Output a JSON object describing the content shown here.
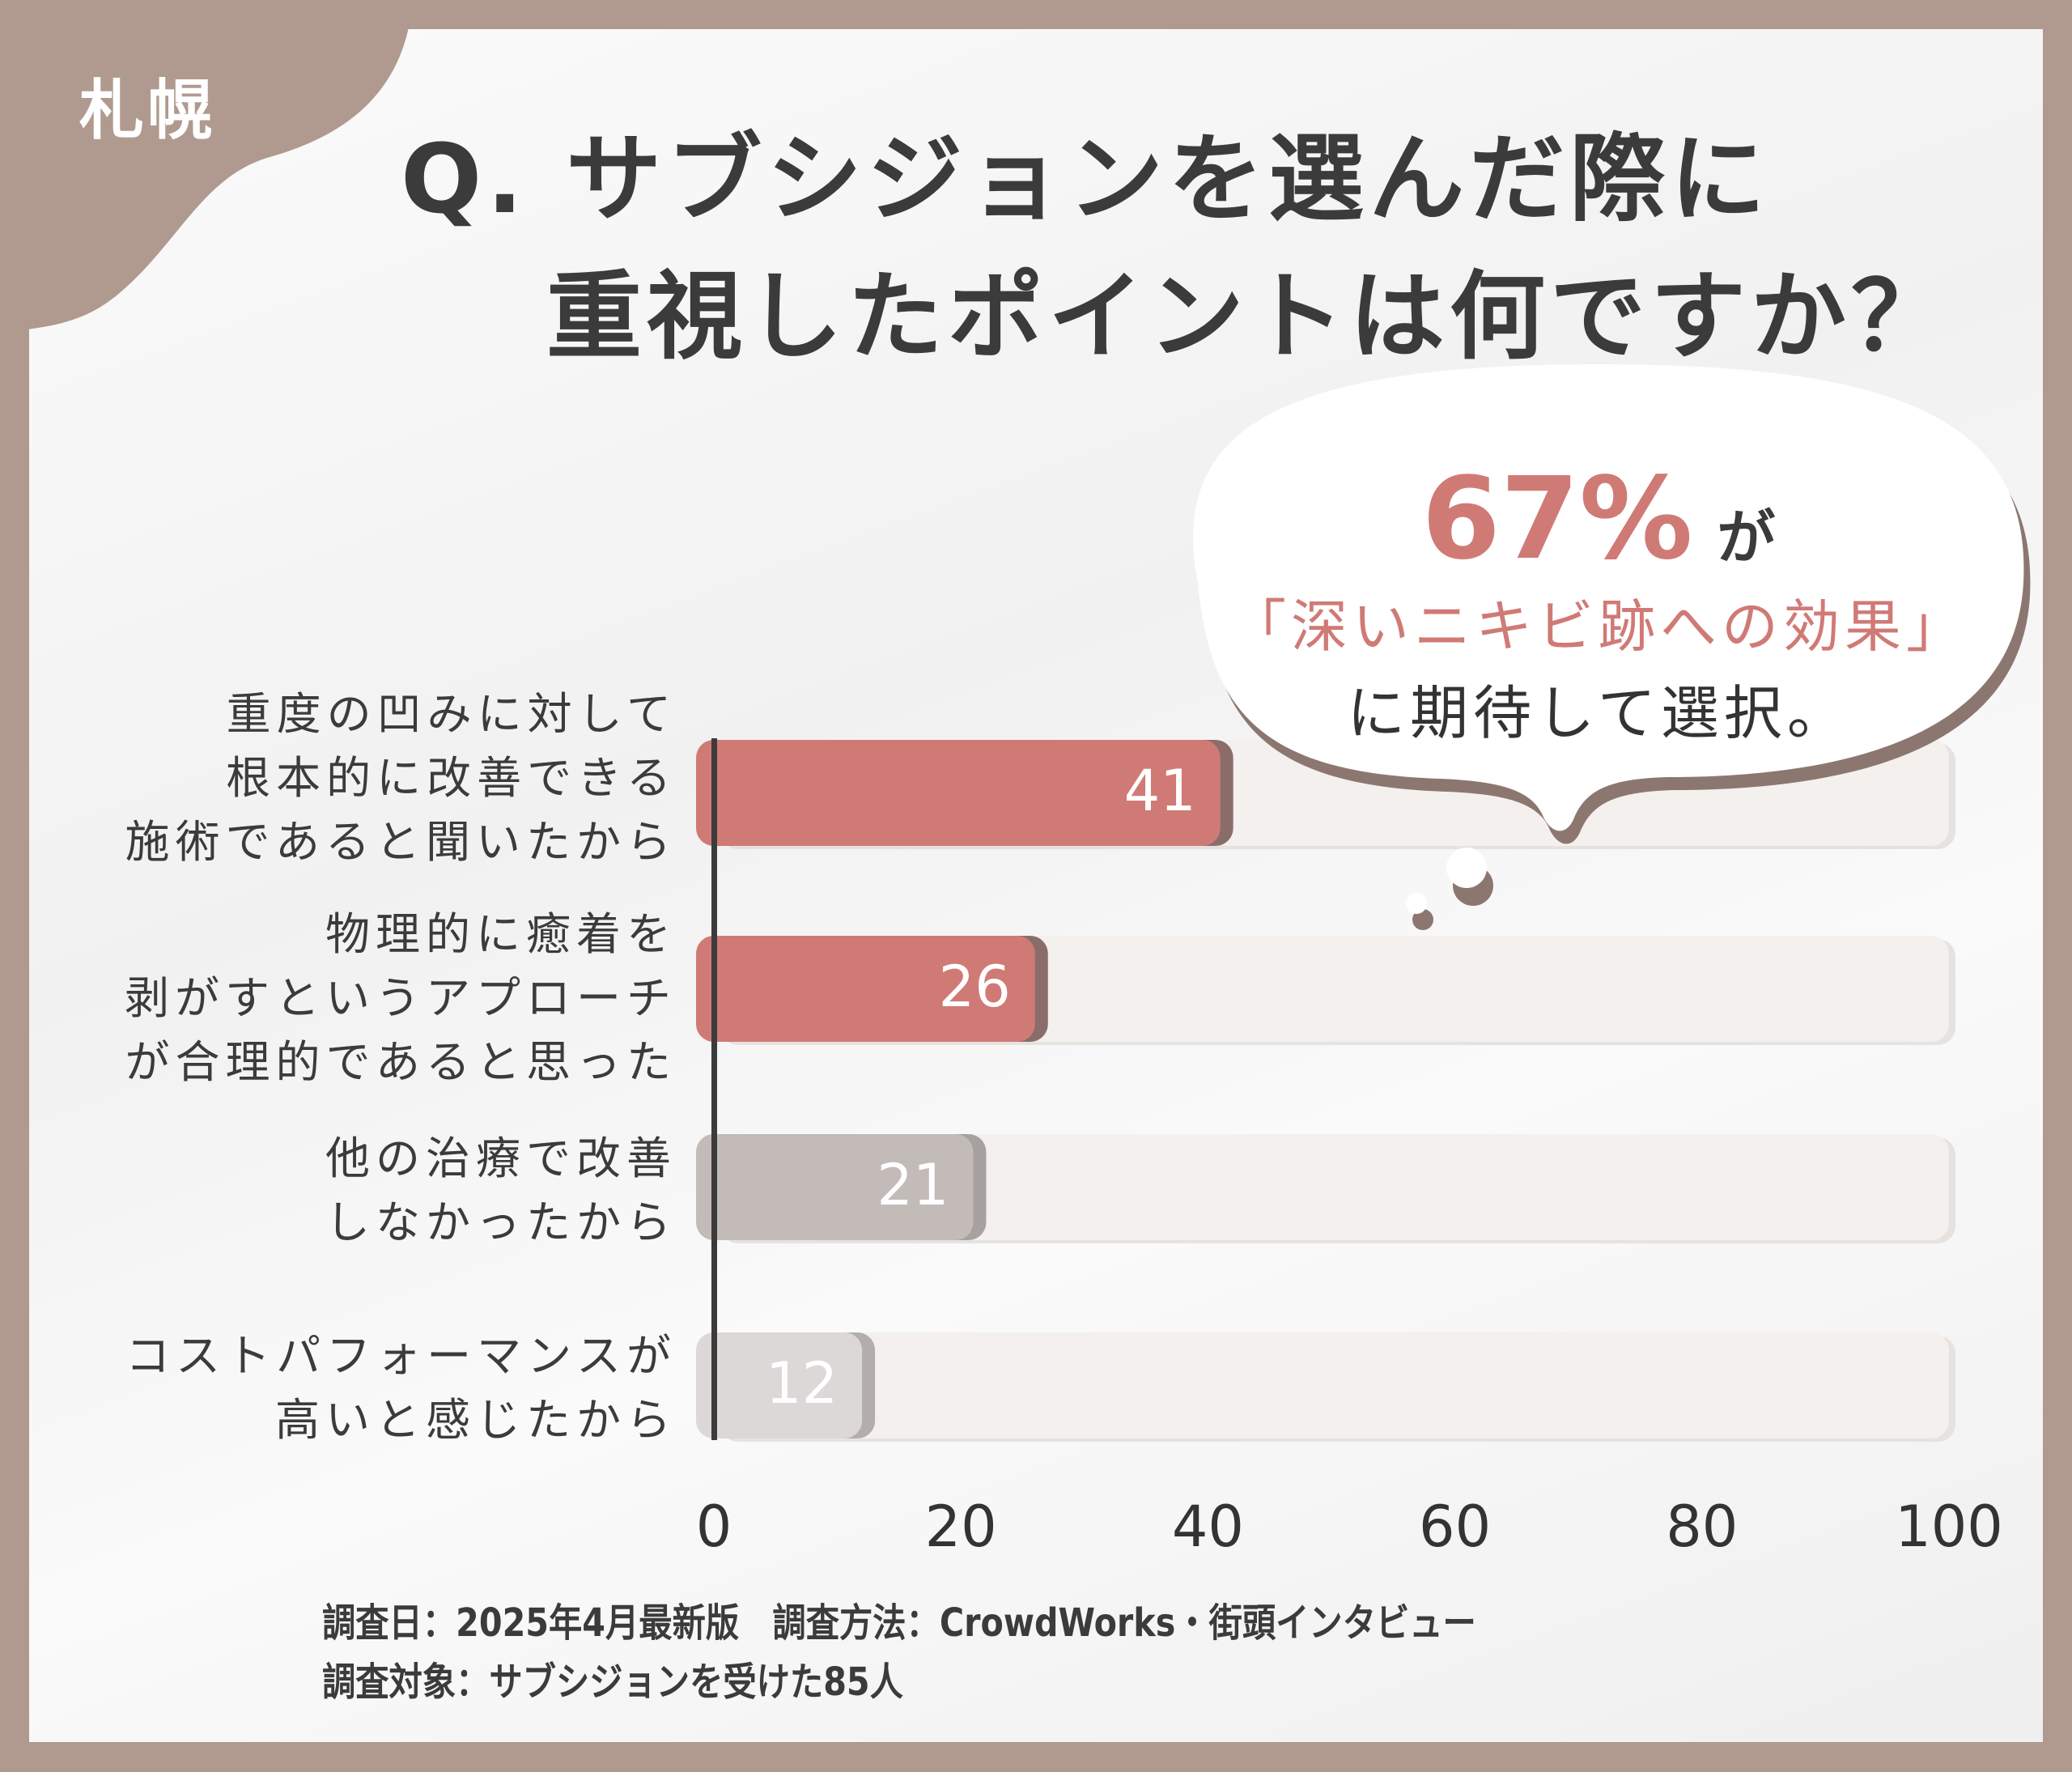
{
  "badge": "札幌",
  "title": {
    "line1": "Q. サブシジョンを選んだ際に",
    "line2": "重視したポイントは何ですか？"
  },
  "callout": {
    "percent": "67%",
    "particle": "が",
    "highlight": "「深いニキビ跡への効果」",
    "tail": "に期待して選択。"
  },
  "footer": {
    "line1": "調査日：2025年4月最新版　調査方法：CrowdWorks・街頭インタビュー",
    "line2": "調査対象：サブシジョンを受けた85人"
  },
  "colors": {
    "frame": "#b09a8f",
    "highlight_bar": "#d07a76",
    "gray_bar": "#c2bbb8",
    "light_bar": "#dcd8d7",
    "track": "#f3f0ee"
  },
  "chart_data": {
    "type": "bar",
    "orientation": "horizontal",
    "categories": [
      "重度の凹みに対して\n根本的に改善できる\n施術であると聞いたから",
      "物理的に癒着を\n剥がすというアプローチ\nが合理的であると思った",
      "他の治療で改善\nしなかったから",
      "コストパフォーマンスが\n高いと感じたから"
    ],
    "values": [
      41,
      26,
      21,
      12
    ],
    "value_labels": [
      "41",
      "26",
      "21",
      "12"
    ],
    "bar_colors": [
      "#d07a76",
      "#d07a76",
      "#c2bbb8",
      "#dcd8d7"
    ],
    "xlim": [
      0,
      100
    ],
    "xticks": [
      "0",
      "20",
      "40",
      "60",
      "80",
      "100"
    ],
    "grid": false
  }
}
